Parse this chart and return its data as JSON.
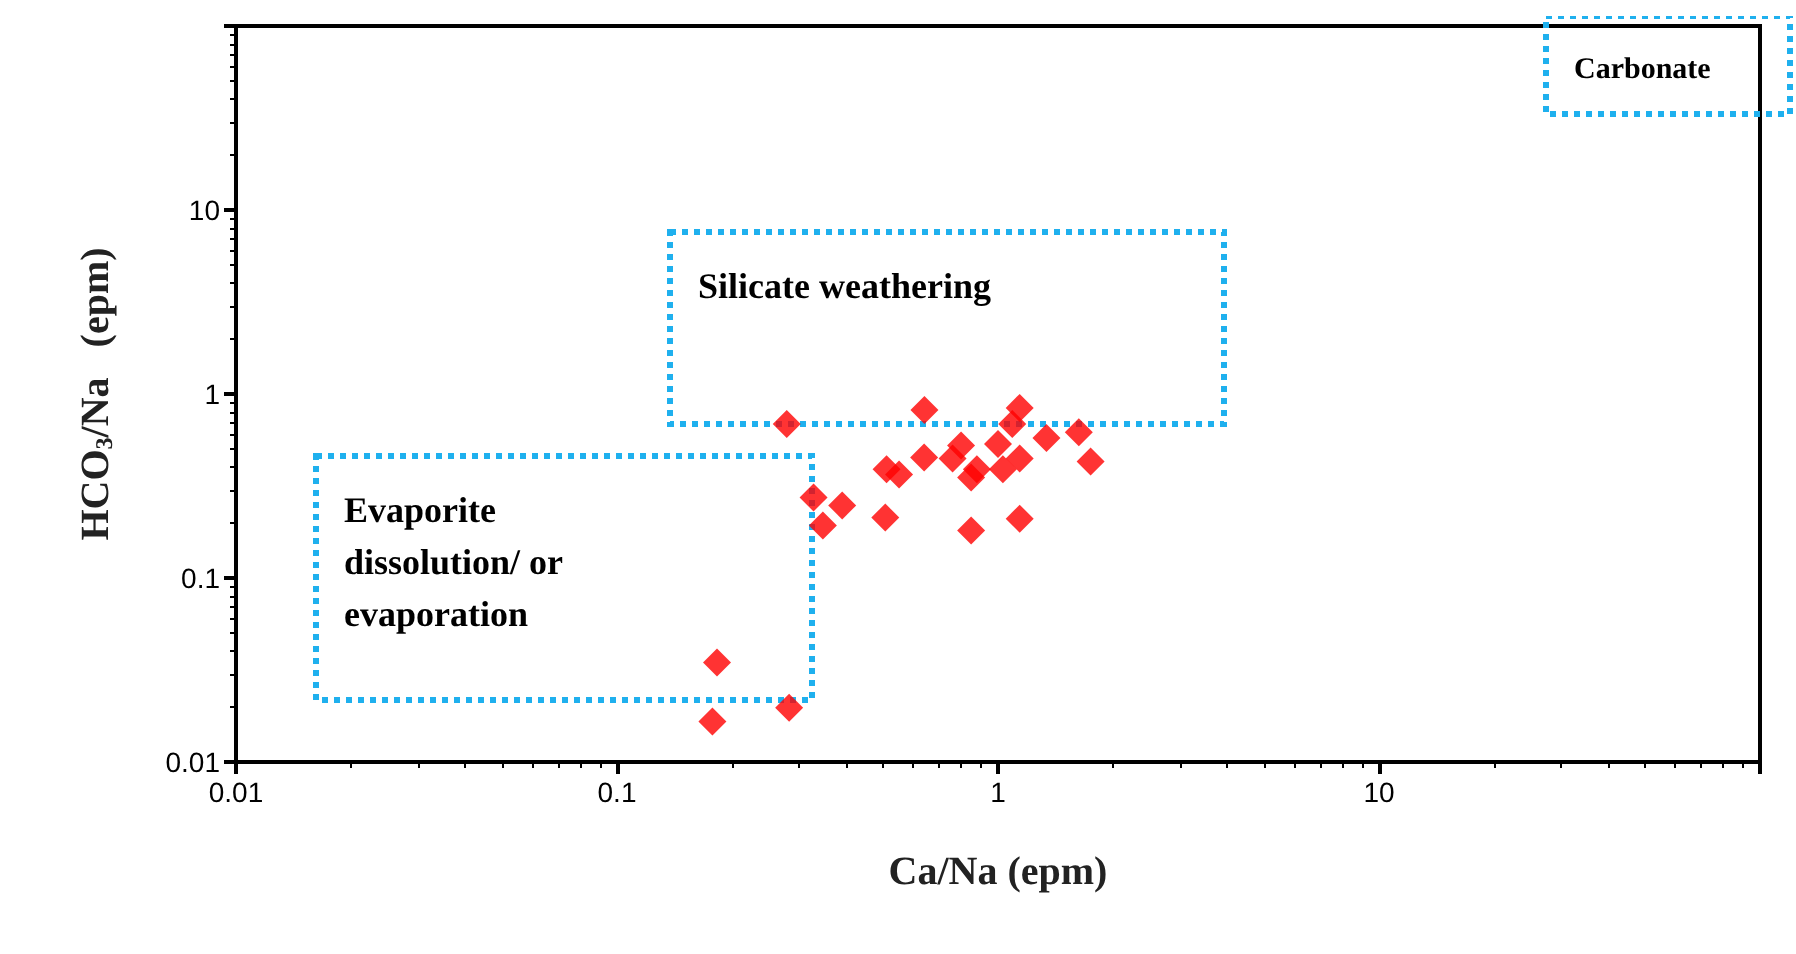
{
  "chart_data": {
    "type": "scatter",
    "xlabel": "Ca/Na (epm)",
    "ylabel": "HCO$_{3}$/Na   (epm)",
    "log": "xy",
    "grid": false,
    "marker": "diamond",
    "xlim": [
      0.01,
      100
    ],
    "ylim": [
      0.01,
      100
    ],
    "xticks": [
      0.01,
      0.1,
      1,
      10,
      {
        "value": 100,
        "label": null
      }
    ],
    "yticks": [
      0.01,
      0.1,
      1,
      10,
      {
        "value": 100,
        "label": null
      }
    ],
    "x": [
      0.279,
      0.641,
      1.14,
      1.09,
      1.63,
      1.34,
      1.0,
      0.8,
      0.64,
      0.76,
      1.14,
      1.75,
      0.88,
      1.03,
      0.51,
      0.55,
      0.85,
      0.328,
      0.39,
      0.347,
      0.506,
      0.85,
      1.14,
      0.183,
      0.178,
      0.283
    ],
    "series": [
      {
        "color": "#ff0000",
        "values": [
          0.687,
          0.818,
          0.84,
          0.687,
          0.62,
          0.577,
          0.535,
          0.525,
          0.452,
          0.446,
          0.446,
          0.43,
          0.39,
          0.39,
          0.39,
          0.365,
          0.352,
          0.274,
          0.248,
          0.193,
          0.213,
          0.181,
          0.21,
          0.0347,
          0.0166,
          0.0197
        ]
      }
    ],
    "annotations": [
      "Carbonate",
      "Silicate weathering",
      "Evaporite\ndissolution/ or\nevaporation"
    ]
  }
}
